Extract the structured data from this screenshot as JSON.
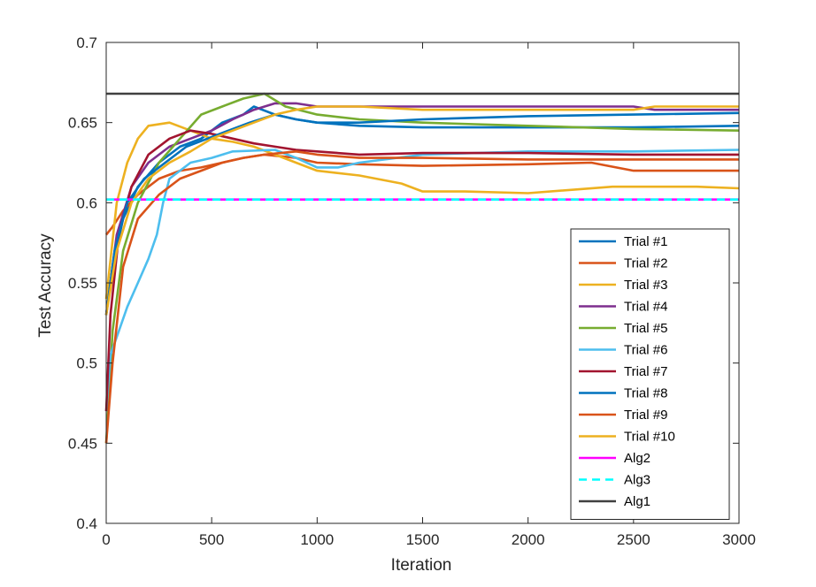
{
  "chart_data": {
    "type": "line",
    "title": "",
    "xlabel": "Iteration",
    "ylabel": "Test Accuracy",
    "xlim": [
      0,
      3000
    ],
    "ylim": [
      0.4,
      0.7
    ],
    "xticks": [
      0,
      500,
      1000,
      1500,
      2000,
      2500,
      3000
    ],
    "yticks": [
      0.4,
      0.45,
      0.5,
      0.55,
      0.6,
      0.65,
      0.7
    ],
    "xtick_labels": [
      "0",
      "500",
      "1000",
      "1500",
      "2000",
      "2500",
      "3000"
    ],
    "ytick_labels": [
      "0.4",
      "0.45",
      "0.5",
      "0.55",
      "0.6",
      "0.65",
      "0.7"
    ],
    "grid": false,
    "legend_position": "right-bottom",
    "series": [
      {
        "name": "Trial #1",
        "color": "#0072BD",
        "style": "solid",
        "points": [
          [
            0,
            0.53
          ],
          [
            30,
            0.56
          ],
          [
            80,
            0.59
          ],
          [
            150,
            0.61
          ],
          [
            250,
            0.625
          ],
          [
            350,
            0.635
          ],
          [
            450,
            0.64
          ],
          [
            550,
            0.65
          ],
          [
            650,
            0.655
          ],
          [
            700,
            0.66
          ],
          [
            800,
            0.655
          ],
          [
            900,
            0.652
          ],
          [
            1000,
            0.65
          ],
          [
            1200,
            0.648
          ],
          [
            1500,
            0.647
          ],
          [
            2000,
            0.647
          ],
          [
            2500,
            0.647
          ],
          [
            3000,
            0.648
          ]
        ]
      },
      {
        "name": "Trial #2",
        "color": "#D95319",
        "style": "solid",
        "points": [
          [
            0,
            0.58
          ],
          [
            30,
            0.585
          ],
          [
            80,
            0.595
          ],
          [
            150,
            0.605
          ],
          [
            250,
            0.615
          ],
          [
            350,
            0.62
          ],
          [
            450,
            0.622
          ],
          [
            550,
            0.625
          ],
          [
            650,
            0.628
          ],
          [
            750,
            0.63
          ],
          [
            900,
            0.628
          ],
          [
            1000,
            0.625
          ],
          [
            1200,
            0.624
          ],
          [
            1500,
            0.623
          ],
          [
            2000,
            0.624
          ],
          [
            2300,
            0.625
          ],
          [
            2500,
            0.62
          ],
          [
            2800,
            0.62
          ],
          [
            3000,
            0.62
          ]
        ]
      },
      {
        "name": "Trial #3",
        "color": "#EDB120",
        "style": "solid",
        "points": [
          [
            0,
            0.54
          ],
          [
            50,
            0.6
          ],
          [
            100,
            0.625
          ],
          [
            150,
            0.64
          ],
          [
            200,
            0.648
          ],
          [
            300,
            0.65
          ],
          [
            400,
            0.645
          ],
          [
            500,
            0.64
          ],
          [
            600,
            0.638
          ],
          [
            700,
            0.635
          ],
          [
            800,
            0.63
          ],
          [
            900,
            0.625
          ],
          [
            1000,
            0.62
          ],
          [
            1200,
            0.617
          ],
          [
            1400,
            0.612
          ],
          [
            1500,
            0.607
          ],
          [
            1700,
            0.607
          ],
          [
            2000,
            0.606
          ],
          [
            2400,
            0.61
          ],
          [
            2800,
            0.61
          ],
          [
            3000,
            0.609
          ]
        ]
      },
      {
        "name": "Trial #4",
        "color": "#7E2F8E",
        "style": "solid",
        "points": [
          [
            0,
            0.53
          ],
          [
            50,
            0.58
          ],
          [
            120,
            0.61
          ],
          [
            200,
            0.625
          ],
          [
            300,
            0.635
          ],
          [
            400,
            0.64
          ],
          [
            500,
            0.645
          ],
          [
            600,
            0.652
          ],
          [
            700,
            0.658
          ],
          [
            800,
            0.662
          ],
          [
            900,
            0.662
          ],
          [
            1000,
            0.66
          ],
          [
            1200,
            0.66
          ],
          [
            1500,
            0.66
          ],
          [
            2000,
            0.66
          ],
          [
            2500,
            0.66
          ],
          [
            2600,
            0.658
          ],
          [
            3000,
            0.658
          ]
        ]
      },
      {
        "name": "Trial #5",
        "color": "#77AC30",
        "style": "solid",
        "points": [
          [
            0,
            0.45
          ],
          [
            30,
            0.52
          ],
          [
            80,
            0.57
          ],
          [
            150,
            0.6
          ],
          [
            250,
            0.625
          ],
          [
            350,
            0.64
          ],
          [
            450,
            0.655
          ],
          [
            550,
            0.66
          ],
          [
            650,
            0.665
          ],
          [
            750,
            0.668
          ],
          [
            850,
            0.66
          ],
          [
            1000,
            0.655
          ],
          [
            1200,
            0.652
          ],
          [
            1500,
            0.65
          ],
          [
            2000,
            0.648
          ],
          [
            2500,
            0.646
          ],
          [
            3000,
            0.645
          ]
        ]
      },
      {
        "name": "Trial #6",
        "color": "#4DBEEE",
        "style": "solid",
        "points": [
          [
            0,
            0.47
          ],
          [
            20,
            0.505
          ],
          [
            60,
            0.52
          ],
          [
            100,
            0.535
          ],
          [
            150,
            0.55
          ],
          [
            200,
            0.565
          ],
          [
            240,
            0.58
          ],
          [
            270,
            0.6
          ],
          [
            300,
            0.615
          ],
          [
            400,
            0.625
          ],
          [
            500,
            0.628
          ],
          [
            600,
            0.632
          ],
          [
            800,
            0.633
          ],
          [
            900,
            0.628
          ],
          [
            1000,
            0.622
          ],
          [
            1100,
            0.622
          ],
          [
            1200,
            0.625
          ],
          [
            1500,
            0.63
          ],
          [
            2000,
            0.632
          ],
          [
            2500,
            0.632
          ],
          [
            3000,
            0.633
          ]
        ]
      },
      {
        "name": "Trial #7",
        "color": "#A2142F",
        "style": "solid",
        "points": [
          [
            0,
            0.47
          ],
          [
            20,
            0.53
          ],
          [
            60,
            0.58
          ],
          [
            120,
            0.61
          ],
          [
            200,
            0.63
          ],
          [
            300,
            0.64
          ],
          [
            400,
            0.645
          ],
          [
            500,
            0.643
          ],
          [
            600,
            0.64
          ],
          [
            700,
            0.637
          ],
          [
            800,
            0.635
          ],
          [
            900,
            0.633
          ],
          [
            1000,
            0.632
          ],
          [
            1200,
            0.63
          ],
          [
            1500,
            0.631
          ],
          [
            2000,
            0.631
          ],
          [
            2500,
            0.63
          ],
          [
            3000,
            0.63
          ]
        ]
      },
      {
        "name": "Trial #8",
        "color": "#0072BD",
        "style": "solid",
        "points": [
          [
            0,
            0.53
          ],
          [
            40,
            0.57
          ],
          [
            100,
            0.6
          ],
          [
            180,
            0.615
          ],
          [
            280,
            0.625
          ],
          [
            380,
            0.635
          ],
          [
            480,
            0.64
          ],
          [
            580,
            0.645
          ],
          [
            680,
            0.65
          ],
          [
            800,
            0.655
          ],
          [
            900,
            0.652
          ],
          [
            1000,
            0.65
          ],
          [
            1200,
            0.65
          ],
          [
            1500,
            0.652
          ],
          [
            2000,
            0.654
          ],
          [
            2500,
            0.655
          ],
          [
            3000,
            0.656
          ]
        ]
      },
      {
        "name": "Trial #9",
        "color": "#D95319",
        "style": "solid",
        "points": [
          [
            0,
            0.45
          ],
          [
            30,
            0.5
          ],
          [
            80,
            0.56
          ],
          [
            150,
            0.59
          ],
          [
            250,
            0.605
          ],
          [
            350,
            0.615
          ],
          [
            450,
            0.62
          ],
          [
            550,
            0.625
          ],
          [
            650,
            0.628
          ],
          [
            750,
            0.63
          ],
          [
            900,
            0.632
          ],
          [
            1000,
            0.63
          ],
          [
            1200,
            0.628
          ],
          [
            1500,
            0.628
          ],
          [
            2000,
            0.627
          ],
          [
            2500,
            0.627
          ],
          [
            3000,
            0.627
          ]
        ]
      },
      {
        "name": "Trial #10",
        "color": "#EDB120",
        "style": "solid",
        "points": [
          [
            0,
            0.53
          ],
          [
            50,
            0.57
          ],
          [
            120,
            0.6
          ],
          [
            200,
            0.615
          ],
          [
            300,
            0.625
          ],
          [
            400,
            0.632
          ],
          [
            500,
            0.64
          ],
          [
            600,
            0.645
          ],
          [
            700,
            0.65
          ],
          [
            800,
            0.655
          ],
          [
            900,
            0.658
          ],
          [
            1000,
            0.66
          ],
          [
            1200,
            0.66
          ],
          [
            1500,
            0.658
          ],
          [
            2000,
            0.658
          ],
          [
            2500,
            0.658
          ],
          [
            2600,
            0.66
          ],
          [
            3000,
            0.66
          ]
        ]
      },
      {
        "name": "Alg2",
        "color": "#FF00FF",
        "style": "solid",
        "points": [
          [
            0,
            0.602
          ],
          [
            3000,
            0.602
          ]
        ]
      },
      {
        "name": "Alg3",
        "color": "#00FFFF",
        "style": "dashed",
        "points": [
          [
            0,
            0.602
          ],
          [
            3000,
            0.602
          ]
        ]
      },
      {
        "name": "Alg1",
        "color": "#404040",
        "style": "solid",
        "points": [
          [
            0,
            0.668
          ],
          [
            3000,
            0.668
          ]
        ]
      }
    ]
  }
}
